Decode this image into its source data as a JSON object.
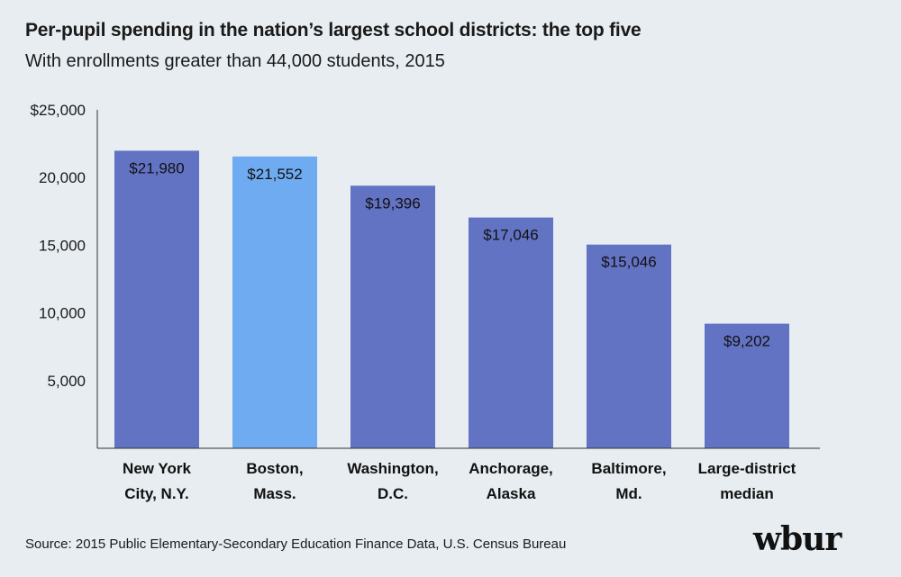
{
  "chart_data": {
    "type": "bar",
    "title": "Per-pupil spending in the nation’s largest school districts: the top five",
    "subtitle": "With enrollments greater than 44,000 students, 2015",
    "categories": [
      [
        "New York",
        "City, N.Y."
      ],
      [
        "Boston,",
        "Mass."
      ],
      [
        "Washington,",
        "D.C."
      ],
      [
        "Anchorage,",
        "Alaska"
      ],
      [
        "Baltimore,",
        "Md."
      ],
      [
        "Large-district",
        "median"
      ]
    ],
    "values": [
      21980,
      21552,
      19396,
      17046,
      15046,
      9202
    ],
    "value_labels": [
      "$21,980",
      "$21,552",
      "$19,396",
      "$17,046",
      "$15,046",
      "$9,202"
    ],
    "highlight_index": 1,
    "ylim": [
      0,
      25000
    ],
    "yticks": [
      5000,
      10000,
      15000,
      20000,
      25000
    ],
    "ytick_labels": [
      "5,000",
      "10,000",
      "15,000",
      "20,000",
      "$25,000"
    ],
    "colors": {
      "bar": "#6373c4",
      "highlight": "#6fabf0",
      "axis": "#333333"
    },
    "grid": false,
    "legend": "none"
  },
  "footer": {
    "source": "Source: 2015 Public Elementary-Secondary Education Finance Data, U.S. Census Bureau",
    "logo": "wbur"
  }
}
